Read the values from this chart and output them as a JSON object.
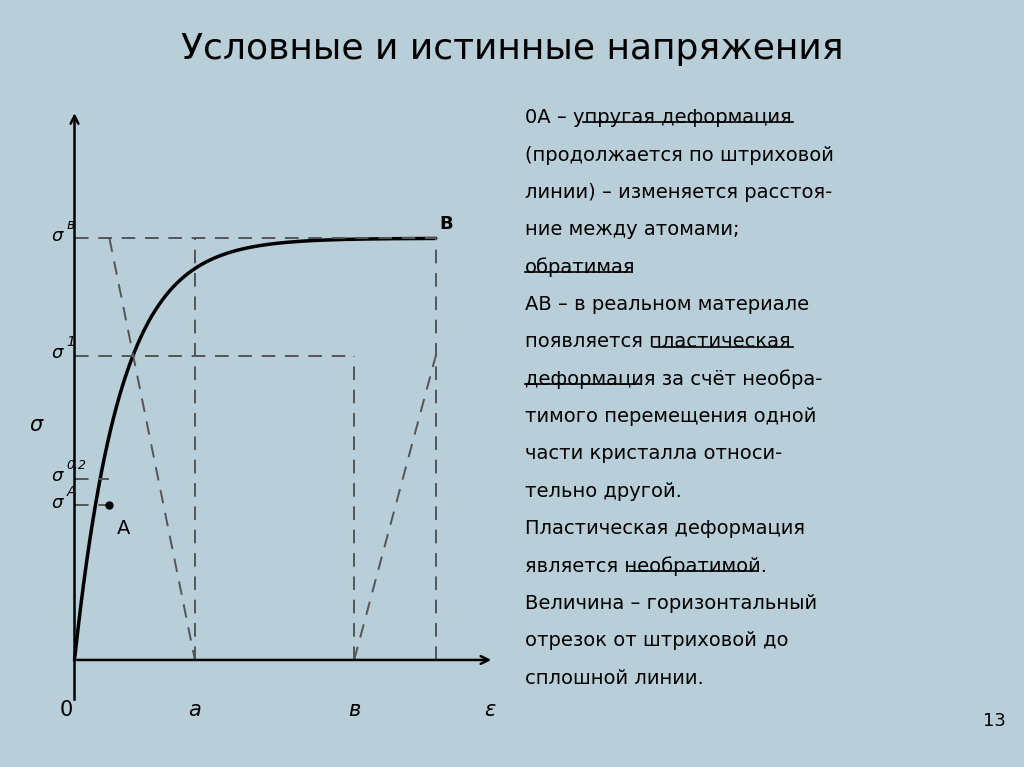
{
  "title": "Условные и истинные напряжения",
  "title_fontsize": 26,
  "bg_color": "#b8ced8",
  "black": "#000000",
  "dark_gray": "#444444",
  "sigma_A": 0.29,
  "sigma_02": 0.34,
  "sigma_1": 0.57,
  "sigma_B": 0.79,
  "eps_A": 0.09,
  "eps_a": 0.31,
  "eps_b": 0.72,
  "eps_B": 0.93,
  "text_lines": [
    [
      [
        "0А – ",
        false
      ],
      [
        "упругая деформация",
        true
      ]
    ],
    [
      [
        "(продолжается по штриховой",
        false
      ]
    ],
    [
      [
        "линии) – изменяется расстоя-",
        false
      ]
    ],
    [
      [
        "ние между атомами;",
        false
      ]
    ],
    [
      [
        "обратимая",
        true
      ]
    ],
    [
      [
        "AB – в реальном материале",
        false
      ]
    ],
    [
      [
        "появляется ",
        false
      ],
      [
        "пластическая",
        true
      ]
    ],
    [
      [
        "деформация",
        true
      ],
      [
        " за счёт необра-",
        false
      ]
    ],
    [
      [
        "тимого перемещения одной",
        false
      ]
    ],
    [
      [
        "части кристалла относи-",
        false
      ]
    ],
    [
      [
        "тельно другой.",
        false
      ]
    ],
    [
      [
        "Пластическая деформация",
        false
      ]
    ],
    [
      [
        "является ",
        false
      ],
      [
        "необратимой",
        true
      ],
      [
        ".",
        false
      ]
    ],
    [
      [
        "Величина – горизонтальный",
        false
      ]
    ],
    [
      [
        "отрезок от штриховой до",
        false
      ]
    ],
    [
      [
        "сплошной линии.",
        false
      ]
    ]
  ],
  "page_number": "13"
}
